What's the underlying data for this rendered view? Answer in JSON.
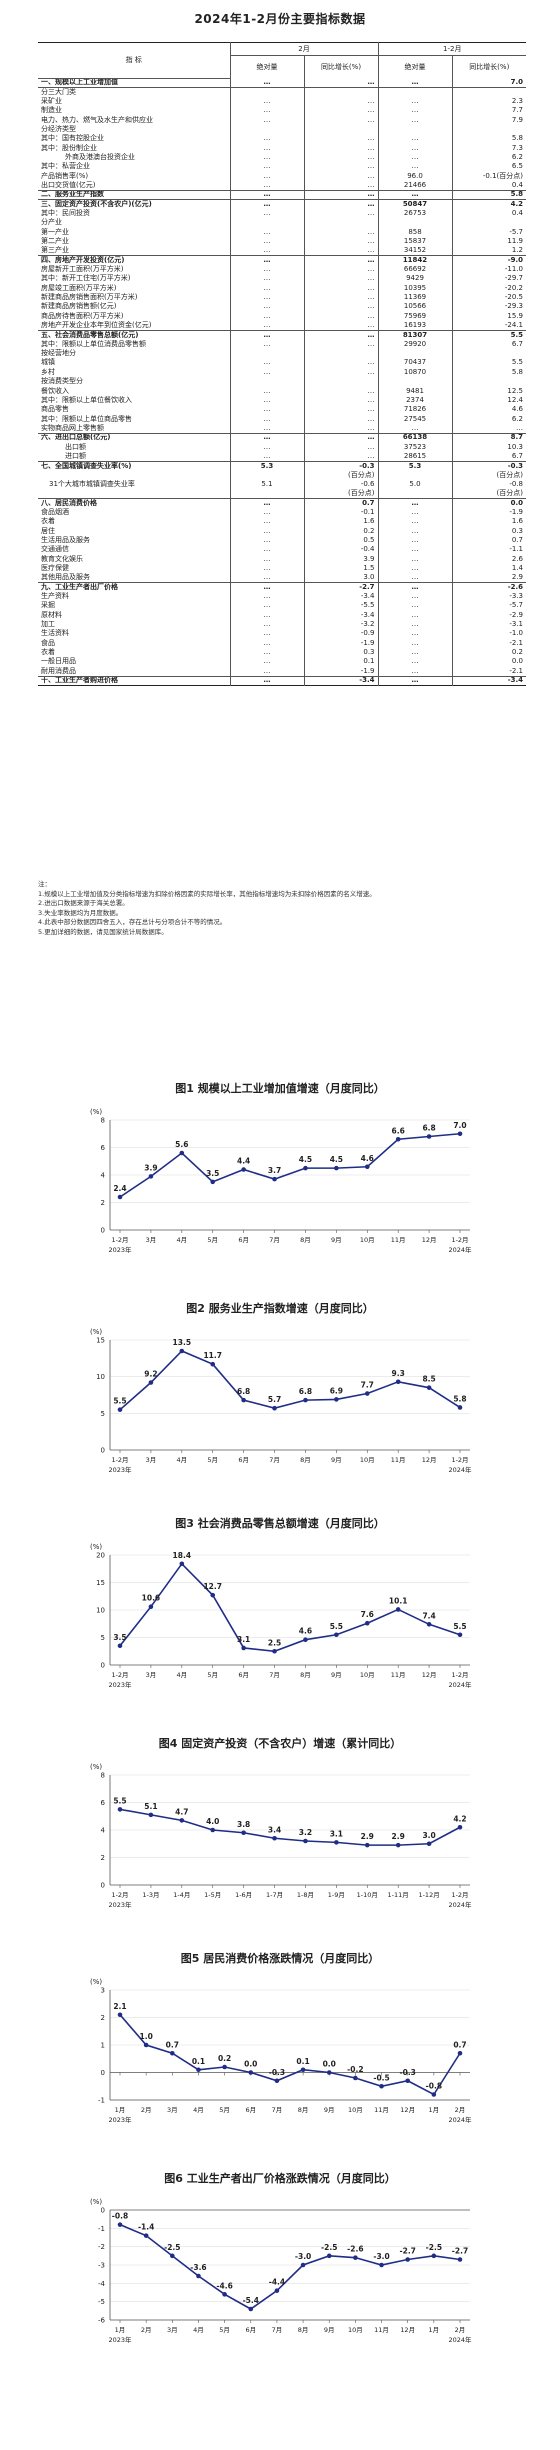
{
  "title": "2024年1-2月份主要指标数据",
  "table": {
    "group_headers": [
      "2月",
      "1-2月"
    ],
    "col_headers": [
      "指 标",
      "绝对量",
      "同比增长(%)",
      "绝对量",
      "同比增长(%)"
    ],
    "rows": [
      {
        "label": "一、规模以上工业增加值",
        "bold": true,
        "sep": true,
        "v": [
          "…",
          "…",
          "…",
          "7.0"
        ]
      },
      {
        "label": "分三大门类",
        "v": [
          "",
          "",
          "",
          ""
        ]
      },
      {
        "label": "采矿业",
        "v": [
          "…",
          "…",
          "…",
          "2.3"
        ]
      },
      {
        "label": "制造业",
        "v": [
          "…",
          "…",
          "…",
          "7.7"
        ]
      },
      {
        "label": "电力、热力、燃气及水生产和供应业",
        "v": [
          "…",
          "…",
          "…",
          "7.9"
        ]
      },
      {
        "label": "分经济类型",
        "v": [
          "",
          "",
          "",
          ""
        ]
      },
      {
        "label": "其中：国有控股企业",
        "v": [
          "…",
          "…",
          "…",
          "5.8"
        ]
      },
      {
        "label": "其中：股份制企业",
        "v": [
          "…",
          "…",
          "…",
          "7.3"
        ]
      },
      {
        "label": "外商及港澳台投资企业",
        "indent": 3,
        "v": [
          "…",
          "…",
          "…",
          "6.2"
        ]
      },
      {
        "label": "其中：私营企业",
        "v": [
          "…",
          "…",
          "…",
          "6.5"
        ]
      },
      {
        "label": "产品销售率(%)",
        "v": [
          "…",
          "…",
          "96.0",
          "-0.1(百分点)"
        ]
      },
      {
        "label": "出口交货值(亿元)",
        "sep": true,
        "v": [
          "…",
          "…",
          "21466",
          "0.4"
        ]
      },
      {
        "label": "二、服务业生产指数",
        "bold": true,
        "sep": true,
        "v": [
          "…",
          "…",
          "…",
          "5.8"
        ]
      },
      {
        "label": "三、固定资产投资(不含农户)(亿元)",
        "bold": true,
        "v": [
          "…",
          "…",
          "50847",
          "4.2"
        ]
      },
      {
        "label": "其中：民间投资",
        "v": [
          "…",
          "…",
          "26753",
          "0.4"
        ]
      },
      {
        "label": "分产业",
        "v": [
          "",
          "",
          "",
          ""
        ]
      },
      {
        "label": "第一产业",
        "v": [
          "…",
          "…",
          "858",
          "-5.7"
        ]
      },
      {
        "label": "第二产业",
        "v": [
          "…",
          "…",
          "15837",
          "11.9"
        ]
      },
      {
        "label": "第三产业",
        "sep": true,
        "v": [
          "…",
          "…",
          "34152",
          "1.2"
        ]
      },
      {
        "label": "四、房地产开发投资(亿元)",
        "bold": true,
        "v": [
          "…",
          "…",
          "11842",
          "-9.0"
        ]
      },
      {
        "label": "房屋新开工面积(万平方米)",
        "v": [
          "…",
          "…",
          "66692",
          "-11.0"
        ]
      },
      {
        "label": "其中：新开工住宅(万平方米)",
        "v": [
          "…",
          "…",
          "9429",
          "-29.7"
        ]
      },
      {
        "label": "房屋竣工面积(万平方米)",
        "v": [
          "…",
          "…",
          "10395",
          "-20.2"
        ]
      },
      {
        "label": "新建商品房销售面积(万平方米)",
        "v": [
          "…",
          "…",
          "11369",
          "-20.5"
        ]
      },
      {
        "label": "新建商品房销售额(亿元)",
        "v": [
          "…",
          "…",
          "10566",
          "-29.3"
        ]
      },
      {
        "label": "商品房待售面积(万平方米)",
        "v": [
          "…",
          "…",
          "75969",
          "15.9"
        ]
      },
      {
        "label": "房地产开发企业本年到位资金(亿元)",
        "sep": true,
        "v": [
          "…",
          "…",
          "16193",
          "-24.1"
        ]
      },
      {
        "label": "五、社会消费品零售总额(亿元)",
        "bold": true,
        "v": [
          "…",
          "…",
          "81307",
          "5.5"
        ]
      },
      {
        "label": "其中：限额以上单位消费品零售额",
        "v": [
          "…",
          "…",
          "29920",
          "6.7"
        ]
      },
      {
        "label": "按经营地分",
        "v": [
          "",
          "",
          "",
          ""
        ]
      },
      {
        "label": "城镇",
        "v": [
          "…",
          "…",
          "70437",
          "5.5"
        ]
      },
      {
        "label": "乡村",
        "v": [
          "…",
          "…",
          "10870",
          "5.8"
        ]
      },
      {
        "label": "按消费类型分",
        "v": [
          "",
          "",
          "",
          ""
        ]
      },
      {
        "label": "餐饮收入",
        "v": [
          "…",
          "…",
          "9481",
          "12.5"
        ]
      },
      {
        "label": "其中：限额以上单位餐饮收入",
        "v": [
          "…",
          "…",
          "2374",
          "12.4"
        ]
      },
      {
        "label": "商品零售",
        "v": [
          "…",
          "…",
          "71826",
          "4.6"
        ]
      },
      {
        "label": "其中：限额以上单位商品零售",
        "v": [
          "…",
          "…",
          "27545",
          "6.2"
        ]
      },
      {
        "label": "实物商品网上零售额",
        "sep": true,
        "v": [
          "…",
          "…",
          "…",
          "…"
        ]
      },
      {
        "label": "六、进出口总额(亿元)",
        "bold": true,
        "v": [
          "…",
          "…",
          "66138",
          "8.7"
        ]
      },
      {
        "label": "出口额",
        "indent": 3,
        "v": [
          "…",
          "…",
          "37523",
          "10.3"
        ]
      },
      {
        "label": "进口额",
        "indent": 3,
        "sep": true,
        "v": [
          "…",
          "…",
          "28615",
          "6.7"
        ]
      },
      {
        "label": "七、全国城镇调查失业率(%)",
        "bold": true,
        "v": [
          "5.3",
          "-0.3",
          "5.3",
          "-0.3"
        ]
      },
      {
        "label": "",
        "v": [
          "",
          "(百分点)",
          "",
          "(百分点)"
        ]
      },
      {
        "label": "31个大城市城镇调查失业率",
        "indent": 1,
        "v": [
          "5.1",
          "-0.6",
          "5.0",
          "-0.8"
        ]
      },
      {
        "label": "",
        "sep": true,
        "v": [
          "",
          "(百分点)",
          "",
          "(百分点)"
        ]
      },
      {
        "label": "八、居民消费价格",
        "bold": true,
        "v": [
          "…",
          "0.7",
          "…",
          "0.0"
        ]
      },
      {
        "label": "食品烟酒",
        "v": [
          "…",
          "-0.1",
          "…",
          "-1.9"
        ]
      },
      {
        "label": "衣着",
        "v": [
          "…",
          "1.6",
          "…",
          "1.6"
        ]
      },
      {
        "label": "居住",
        "v": [
          "…",
          "0.2",
          "…",
          "0.3"
        ]
      },
      {
        "label": "生活用品及服务",
        "v": [
          "…",
          "0.5",
          "…",
          "0.7"
        ]
      },
      {
        "label": "交通通信",
        "v": [
          "…",
          "-0.4",
          "…",
          "-1.1"
        ]
      },
      {
        "label": "教育文化娱乐",
        "v": [
          "…",
          "3.9",
          "…",
          "2.6"
        ]
      },
      {
        "label": "医疗保健",
        "v": [
          "…",
          "1.5",
          "…",
          "1.4"
        ]
      },
      {
        "label": "其他用品及服务",
        "sep": true,
        "v": [
          "…",
          "3.0",
          "…",
          "2.9"
        ]
      },
      {
        "label": "九、工业生产者出厂价格",
        "bold": true,
        "v": [
          "…",
          "-2.7",
          "…",
          "-2.6"
        ]
      },
      {
        "label": "生产资料",
        "v": [
          "…",
          "-3.4",
          "…",
          "-3.3"
        ]
      },
      {
        "label": "采掘",
        "v": [
          "…",
          "-5.5",
          "…",
          "-5.7"
        ]
      },
      {
        "label": "原材料",
        "v": [
          "…",
          "-3.4",
          "…",
          "-2.9"
        ]
      },
      {
        "label": "加工",
        "v": [
          "…",
          "-3.2",
          "…",
          "-3.1"
        ]
      },
      {
        "label": "生活资料",
        "v": [
          "…",
          "-0.9",
          "…",
          "-1.0"
        ]
      },
      {
        "label": "食品",
        "v": [
          "…",
          "-1.9",
          "…",
          "-2.1"
        ]
      },
      {
        "label": "衣着",
        "v": [
          "…",
          "0.3",
          "…",
          "0.2"
        ]
      },
      {
        "label": "一般日用品",
        "v": [
          "…",
          "0.1",
          "…",
          "0.0"
        ]
      },
      {
        "label": "耐用消费品",
        "sep": true,
        "v": [
          "…",
          "-1.9",
          "…",
          "-2.1"
        ]
      },
      {
        "label": "十、工业生产者购进价格",
        "bold": true,
        "v": [
          "…",
          "-3.4",
          "…",
          "-3.4"
        ]
      }
    ]
  },
  "notes": [
    "注：",
    "1.规模以上工业增加值及分类指标增速为扣除价格因素的实际增长率，其他指标增速均为未扣除价格因素的名义增速。",
    "2.进出口数据来源于海关总署。",
    "3.失业率数据均为月度数据。",
    "4.此表中部分数据因四舍五入，存在总计与分项合计不等的情况。",
    "5.更加详细的数据，请见国家统计局数据库。"
  ],
  "charts": [
    {
      "title": "图1 规模以上工业增加值增速（月度同比）",
      "chart_data": {
        "type": "line",
        "ylabel": "(%)",
        "yticks": [
          0,
          2,
          4,
          6,
          8
        ],
        "ylim": [
          0,
          8
        ],
        "categories": [
          "1-2月",
          "3月",
          "4月",
          "5月",
          "6月",
          "7月",
          "8月",
          "9月",
          "10月",
          "11月",
          "12月",
          "1-2月"
        ],
        "values": [
          2.4,
          3.9,
          5.6,
          3.5,
          4.4,
          3.7,
          4.5,
          4.5,
          4.6,
          6.6,
          6.8,
          7.0
        ],
        "year_labels": [
          "2023年",
          "2024年"
        ]
      }
    },
    {
      "title": "图2 服务业生产指数增速（月度同比）",
      "chart_data": {
        "type": "line",
        "ylabel": "(%)",
        "yticks": [
          0,
          5,
          10,
          15
        ],
        "ylim": [
          0,
          15
        ],
        "categories": [
          "1-2月",
          "3月",
          "4月",
          "5月",
          "6月",
          "7月",
          "8月",
          "9月",
          "10月",
          "11月",
          "12月",
          "1-2月"
        ],
        "values": [
          5.5,
          9.2,
          13.5,
          11.7,
          6.8,
          5.7,
          6.8,
          6.9,
          7.7,
          9.3,
          8.5,
          5.8
        ],
        "year_labels": [
          "2023年",
          "2024年"
        ]
      }
    },
    {
      "title": "图3 社会消费品零售总额增速（月度同比）",
      "chart_data": {
        "type": "line",
        "ylabel": "(%)",
        "yticks": [
          0,
          5,
          10,
          15,
          20
        ],
        "ylim": [
          0,
          20
        ],
        "categories": [
          "1-2月",
          "3月",
          "4月",
          "5月",
          "6月",
          "7月",
          "8月",
          "9月",
          "10月",
          "11月",
          "12月",
          "1-2月"
        ],
        "values": [
          3.5,
          10.6,
          18.4,
          12.7,
          3.1,
          2.5,
          4.6,
          5.5,
          7.6,
          10.1,
          7.4,
          5.5
        ],
        "year_labels": [
          "2023年",
          "2024年"
        ]
      }
    },
    {
      "title": "图4 固定资产投资（不含农户）增速（累计同比）",
      "chart_data": {
        "type": "line",
        "ylabel": "(%)",
        "yticks": [
          0,
          2,
          4,
          6,
          8
        ],
        "ylim": [
          0,
          8
        ],
        "categories": [
          "1-2月",
          "1-3月",
          "1-4月",
          "1-5月",
          "1-6月",
          "1-7月",
          "1-8月",
          "1-9月",
          "1-10月",
          "1-11月",
          "1-12月",
          "1-2月"
        ],
        "values": [
          5.5,
          5.1,
          4.7,
          4.0,
          3.8,
          3.4,
          3.2,
          3.1,
          2.9,
          2.9,
          3.0,
          4.2
        ],
        "year_labels": [
          "2023年",
          "2024年"
        ]
      }
    },
    {
      "title": "图5 居民消费价格涨跌情况（月度同比）",
      "chart_data": {
        "type": "line",
        "ylabel": "(%)",
        "yticks": [
          -1,
          0,
          1,
          2,
          3
        ],
        "ylim": [
          -1,
          3
        ],
        "categories": [
          "1月",
          "2月",
          "3月",
          "4月",
          "5月",
          "6月",
          "7月",
          "8月",
          "9月",
          "10月",
          "11月",
          "12月",
          "1月",
          "2月"
        ],
        "values": [
          2.1,
          1.0,
          0.7,
          0.1,
          0.2,
          0.0,
          -0.3,
          0.1,
          0.0,
          -0.2,
          -0.5,
          -0.3,
          -0.8,
          0.7
        ],
        "year_labels": [
          "2023年",
          "2024年"
        ]
      }
    },
    {
      "title": "图6 工业生产者出厂价格涨跌情况（月度同比）",
      "chart_data": {
        "type": "line",
        "ylabel": "(%)",
        "yticks": [
          -6,
          -5,
          -4,
          -3,
          -2,
          -1,
          0
        ],
        "ylim": [
          -6,
          0
        ],
        "categories": [
          "1月",
          "2月",
          "3月",
          "4月",
          "5月",
          "6月",
          "7月",
          "8月",
          "9月",
          "10月",
          "11月",
          "12月",
          "1月",
          "2月"
        ],
        "values": [
          -0.8,
          -1.4,
          -2.5,
          -3.6,
          -4.6,
          -5.4,
          -4.4,
          -3.0,
          -2.5,
          -2.6,
          -3.0,
          -2.7,
          -2.5,
          -2.7
        ],
        "year_labels": [
          "2023年",
          "2024年"
        ]
      }
    }
  ],
  "colors": {
    "line": "#1f2d86",
    "marker": "#1f2d86",
    "grid": "#d9d9d9",
    "axis": "#555555",
    "text": "#222222"
  }
}
